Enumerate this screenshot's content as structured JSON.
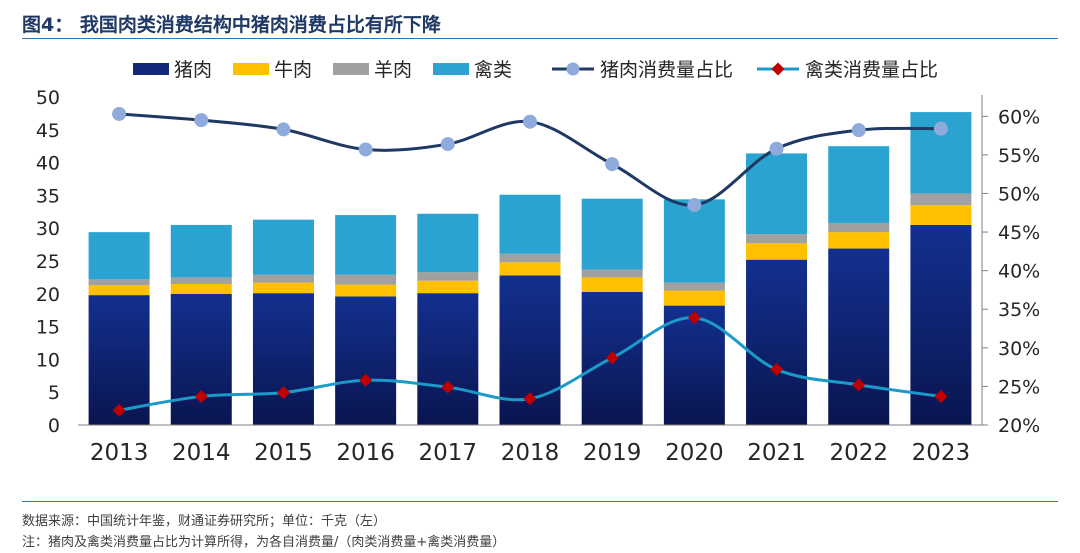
{
  "figure": {
    "title": "图4：  我国肉类消费结构中猪肉消费占比有所下降"
  },
  "notes": {
    "source": "数据来源：中国统计年鉴，财通证券研究所；单位：千克（左）",
    "annotation": "注：猪肉及禽类消费量占比为计算所得，为各自消费量/（肉类消费量+禽类消费量）"
  },
  "colors": {
    "pork": "#12277a",
    "beef": "#ffc000",
    "mutton": "#a0a0a0",
    "poultry": "#2aa3d0",
    "pork_share_line": "#1f3864",
    "pork_share_marker": "#8faadc",
    "poultry_share_line": "#1b9ac8",
    "poultry_share_marker": "#c00000"
  },
  "chart_data": {
    "type": "bar",
    "stacked": true,
    "categories": [
      "2013",
      "2014",
      "2015",
      "2016",
      "2017",
      "2018",
      "2019",
      "2020",
      "2021",
      "2022",
      "2023"
    ],
    "series": [
      {
        "name": "猪肉",
        "type": "bar",
        "axis": "left",
        "values": [
          19.8,
          20.0,
          20.1,
          19.6,
          20.1,
          22.8,
          20.3,
          18.2,
          25.2,
          26.9,
          30.5
        ]
      },
      {
        "name": "牛肉",
        "type": "bar",
        "axis": "left",
        "values": [
          1.5,
          1.5,
          1.6,
          1.8,
          1.9,
          2.0,
          2.2,
          2.3,
          2.5,
          2.5,
          3.0
        ]
      },
      {
        "name": "羊肉",
        "type": "bar",
        "axis": "left",
        "values": [
          0.9,
          1.0,
          1.2,
          1.5,
          1.3,
          1.3,
          1.2,
          1.2,
          1.4,
          1.4,
          1.8
        ]
      },
      {
        "name": "禽类",
        "type": "bar",
        "axis": "left",
        "values": [
          7.2,
          8.0,
          8.4,
          9.1,
          8.9,
          9.0,
          10.8,
          12.7,
          12.3,
          11.7,
          12.4
        ]
      },
      {
        "name": "猪肉消费量占比",
        "type": "line",
        "axis": "right",
        "values": [
          60.3,
          59.5,
          58.3,
          55.7,
          56.4,
          59.3,
          53.8,
          48.5,
          55.8,
          58.2,
          58.4
        ]
      },
      {
        "name": "禽类消费量占比",
        "type": "line",
        "axis": "right",
        "values": [
          21.9,
          23.7,
          24.2,
          25.8,
          24.9,
          23.4,
          28.7,
          33.9,
          27.2,
          25.2,
          23.7
        ]
      }
    ],
    "y_left": {
      "min": 0,
      "max": 50,
      "step": 5,
      "ticks": [
        "0",
        "5",
        "10",
        "15",
        "20",
        "25",
        "30",
        "35",
        "40",
        "45",
        "50"
      ]
    },
    "y_right": {
      "min": 20,
      "max": 62.5,
      "step": 5,
      "ticks": [
        "20%",
        "25%",
        "30%",
        "35%",
        "40%",
        "45%",
        "50%",
        "55%",
        "60%"
      ]
    },
    "grid": false,
    "legend": "top"
  }
}
